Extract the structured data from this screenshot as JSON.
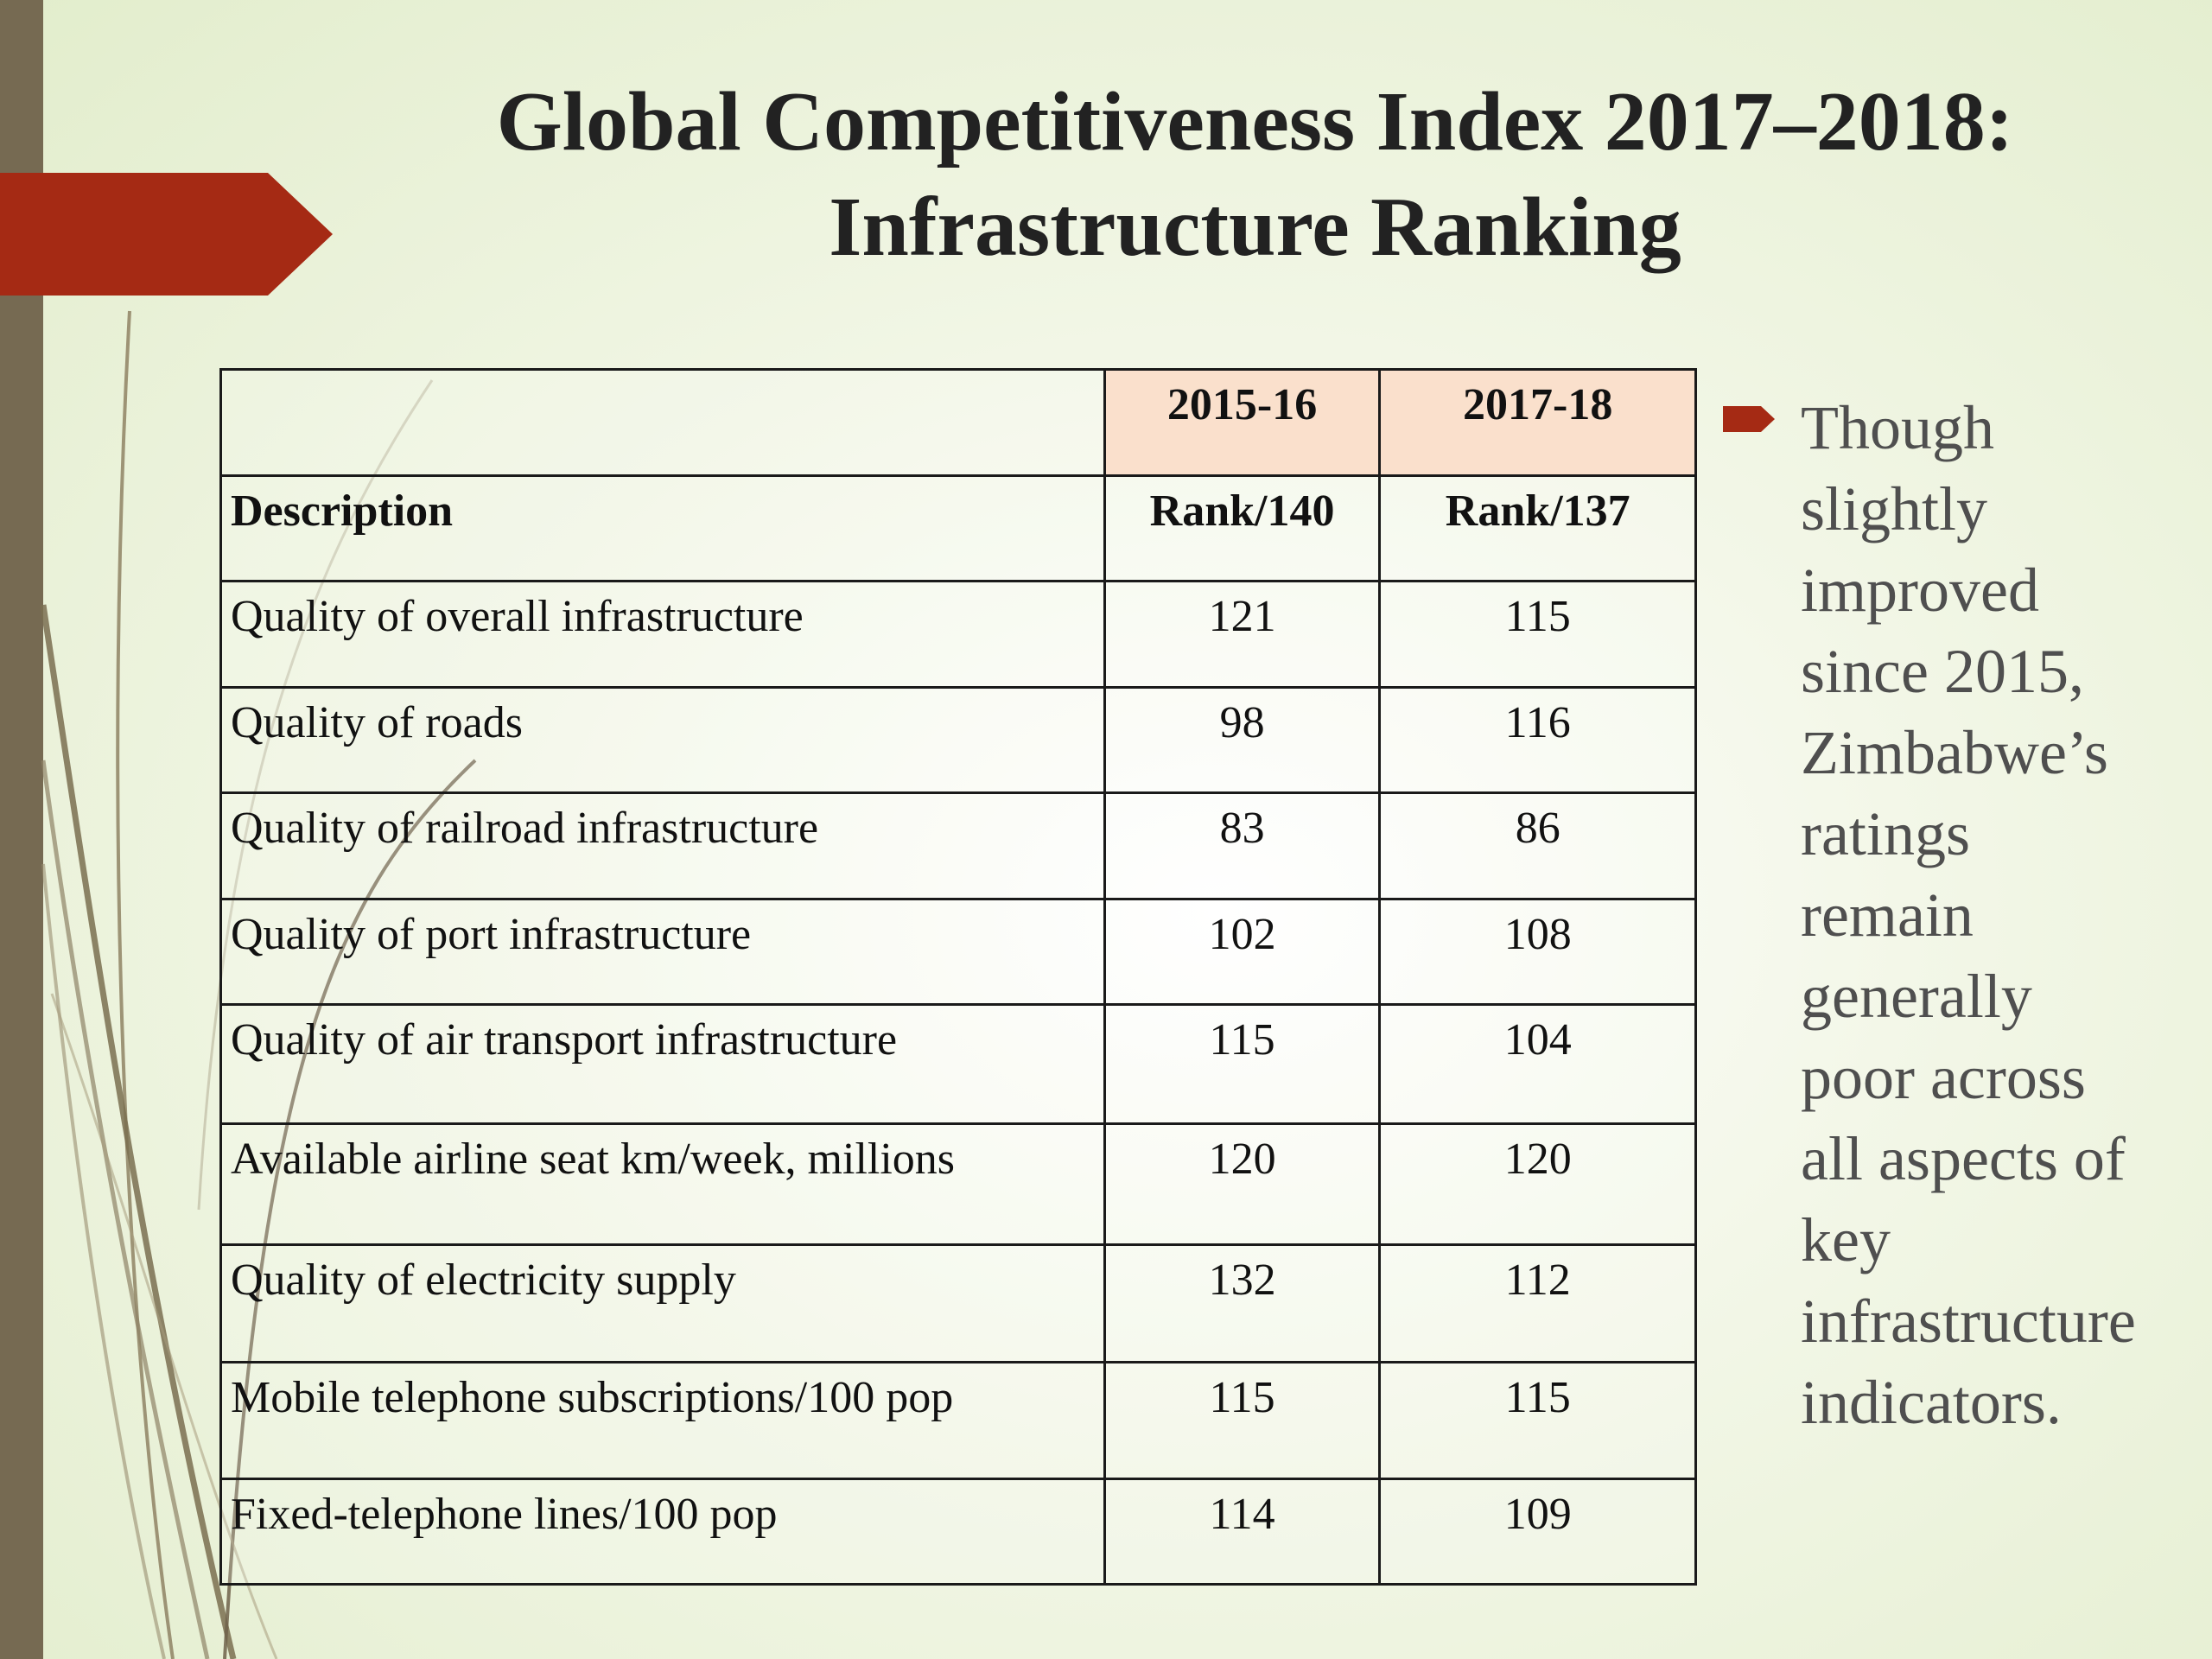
{
  "slide": {
    "title_line1": "Global Competitiveness Index 2017–2018:",
    "title_line2": "Infrastructure Ranking"
  },
  "table": {
    "header_row1": [
      "",
      "2015-16",
      "2017-18"
    ],
    "header_row2": [
      "Description",
      "Rank/140",
      "Rank/137"
    ],
    "rows": [
      [
        "Quality of overall infrastructure",
        "121",
        "115"
      ],
      [
        "Quality of roads",
        "98",
        "116"
      ],
      [
        "Quality of railroad infrastructure",
        "83",
        "86"
      ],
      [
        "Quality of port infrastructure",
        "102",
        "108"
      ],
      [
        "Quality of air transport infrastructure",
        "115",
        "104"
      ],
      [
        "Available airline seat km/week, millions",
        "120",
        "120"
      ],
      [
        "Quality of electricity supply",
        "132",
        "112"
      ],
      [
        "Mobile telephone subscriptions/100 pop",
        "115",
        "115"
      ],
      [
        "Fixed-telephone lines/100 pop",
        "114",
        "109"
      ]
    ]
  },
  "bullet": {
    "icon": "arrow-bullet-icon",
    "text": "Though\nslightly\nimproved\nsince 2015,\nZimbabwe’s\nratings\nremain\ngenerally\npoor across\nall aspects of\nkey\ninfrastructure\nindicators."
  },
  "colors": {
    "accent_red": "#a52a14",
    "side_bar": "#766a52",
    "header_shade": "#fae0cc",
    "bullet_text": "#4f4f4f"
  }
}
